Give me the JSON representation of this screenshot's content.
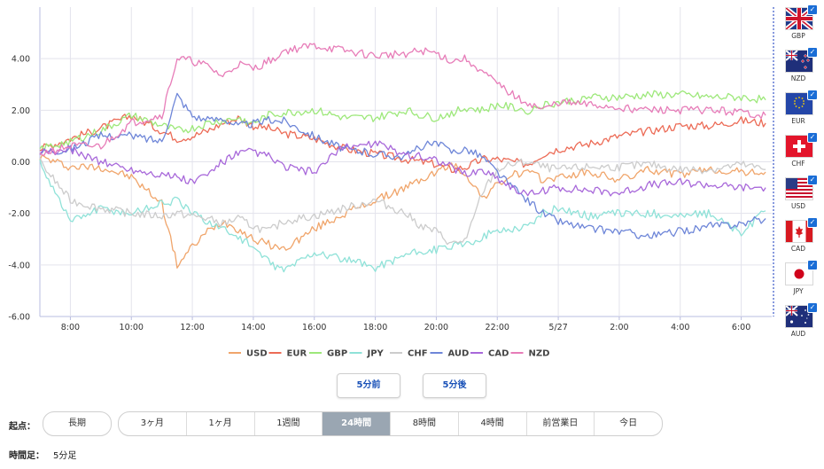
{
  "chart_data": {
    "type": "line",
    "title": "",
    "xlabel": "",
    "ylabel": "",
    "ylim": [
      -6,
      6
    ],
    "xlim": [
      -1,
      23
    ],
    "y_ticks": [
      4,
      2,
      0,
      -2,
      -4,
      -6
    ],
    "y_tick_labels": [
      "4.00",
      "2.00",
      "0.00",
      "-2.00",
      "-4.00",
      "-6.00"
    ],
    "x_ticks": [
      0,
      2,
      4,
      6,
      8,
      10,
      12,
      14,
      16,
      18,
      20,
      22
    ],
    "x_tick_labels": [
      "8:00",
      "10:00",
      "12:00",
      "14:00",
      "16:00",
      "18:00",
      "20:00",
      "22:00",
      "5/27",
      "2:00",
      "4:00",
      "6:00"
    ],
    "grid": true,
    "legend_position": "bottom",
    "series": [
      {
        "name": "USD",
        "color": "#f0a56b",
        "x": [
          -1,
          0,
          1,
          2,
          3,
          3.5,
          4,
          4.5,
          5,
          5.5,
          6,
          6.5,
          7,
          8,
          9,
          10,
          11,
          11.5,
          12,
          12.5,
          13,
          13.5,
          14,
          14.5,
          15,
          15.5,
          16,
          17,
          18,
          19,
          20,
          21,
          22,
          22.8
        ],
        "values": [
          0.2,
          -0.2,
          -0.2,
          -0.6,
          -1.6,
          -4.0,
          -3.3,
          -2.7,
          -2.3,
          -2.6,
          -3.0,
          -3.2,
          -3.4,
          -2.6,
          -2.0,
          -1.5,
          -1.0,
          -0.7,
          -0.4,
          -0.1,
          -0.5,
          -1.4,
          -0.9,
          -0.5,
          -0.4,
          -0.7,
          -0.6,
          -0.4,
          -0.7,
          -0.3,
          -0.5,
          -0.3,
          -0.4,
          -0.4
        ]
      },
      {
        "name": "EUR",
        "color": "#ec6b56",
        "x": [
          -1,
          0,
          1,
          2,
          3,
          3.5,
          4,
          4.5,
          5,
          5.5,
          6,
          6.5,
          7,
          8,
          9,
          10,
          11,
          11.5,
          12,
          12.5,
          13,
          13.5,
          14,
          14.5,
          15,
          15.5,
          16,
          17,
          18,
          19,
          20,
          21,
          22,
          22.8
        ],
        "values": [
          0.5,
          0.9,
          1.3,
          1.8,
          1.2,
          0.9,
          1.0,
          1.2,
          1.5,
          1.7,
          1.4,
          1.3,
          1.1,
          0.9,
          0.5,
          0.3,
          0.1,
          0.0,
          -0.1,
          -0.3,
          -0.2,
          0.1,
          0.1,
          0.0,
          -0.1,
          0.3,
          0.5,
          0.7,
          1.0,
          1.2,
          1.4,
          1.4,
          1.6,
          1.5
        ]
      },
      {
        "name": "GBP",
        "color": "#9de87a",
        "x": [
          -1,
          0,
          1,
          2,
          3,
          3.5,
          4,
          4.5,
          5,
          5.5,
          6,
          6.5,
          7,
          8,
          9,
          10,
          11,
          11.5,
          12,
          12.5,
          13,
          13.5,
          14,
          14.5,
          15,
          15.5,
          16,
          17,
          18,
          19,
          20,
          21,
          22,
          22.8
        ],
        "values": [
          0.5,
          0.8,
          1.2,
          1.8,
          1.4,
          1.2,
          1.3,
          1.5,
          1.6,
          1.7,
          1.5,
          1.8,
          1.9,
          2.0,
          1.7,
          1.7,
          2.0,
          1.8,
          1.7,
          1.9,
          2.1,
          2.0,
          2.2,
          2.1,
          2.0,
          2.2,
          2.3,
          2.5,
          2.5,
          2.6,
          2.6,
          2.5,
          2.5,
          2.4
        ]
      },
      {
        "name": "JPY",
        "color": "#8fe2d8",
        "x": [
          -1,
          0,
          1,
          2,
          3,
          3.5,
          4,
          4.5,
          5,
          5.5,
          6,
          6.5,
          7,
          8,
          9,
          10,
          11,
          11.5,
          12,
          12.5,
          13,
          13.5,
          14,
          14.5,
          15,
          15.5,
          16,
          17,
          18,
          19,
          20,
          21,
          22,
          22.8
        ],
        "values": [
          0.0,
          -2.3,
          -1.8,
          -2.0,
          -1.6,
          -1.5,
          -2.0,
          -2.3,
          -2.6,
          -2.9,
          -3.3,
          -3.9,
          -4.2,
          -3.5,
          -3.8,
          -4.1,
          -3.6,
          -3.5,
          -3.4,
          -3.3,
          -3.2,
          -2.9,
          -2.7,
          -2.6,
          -2.5,
          -2.0,
          -1.8,
          -2.1,
          -2.0,
          -2.0,
          -2.1,
          -2.0,
          -2.8,
          -1.9
        ]
      },
      {
        "name": "CHF",
        "color": "#cccccc",
        "x": [
          -1,
          0,
          1,
          2,
          3,
          3.5,
          4,
          4.5,
          5,
          5.5,
          6,
          6.5,
          7,
          8,
          9,
          10,
          11,
          11.5,
          12,
          12.5,
          13,
          13.5,
          14,
          14.5,
          15,
          15.5,
          16,
          17,
          18,
          19,
          20,
          21,
          22,
          22.8
        ],
        "values": [
          0.0,
          -1.5,
          -1.8,
          -2.0,
          -2.1,
          -2.0,
          -2.1,
          -2.2,
          -2.4,
          -2.2,
          -2.5,
          -2.7,
          -2.3,
          -2.1,
          -1.8,
          -1.5,
          -2.0,
          -2.5,
          -2.7,
          -3.2,
          -3.0,
          -1.2,
          -0.3,
          -0.1,
          0.0,
          -0.2,
          -0.3,
          -0.2,
          -0.2,
          -0.1,
          -0.3,
          -0.3,
          -0.1,
          -0.3
        ]
      },
      {
        "name": "AUD",
        "color": "#6e86d8",
        "x": [
          -1,
          0,
          1,
          2,
          3,
          3.5,
          4,
          4.5,
          5,
          5.5,
          6,
          6.5,
          7,
          8,
          9,
          10,
          11,
          11.5,
          12,
          12.5,
          13,
          13.5,
          14,
          14.5,
          15,
          15.5,
          16,
          17,
          18,
          19,
          20,
          21,
          22,
          22.8
        ],
        "values": [
          0.4,
          0.5,
          1.0,
          1.0,
          0.8,
          2.6,
          1.8,
          1.6,
          1.7,
          1.4,
          1.5,
          1.6,
          1.6,
          1.0,
          0.5,
          0.3,
          0.2,
          0.6,
          0.7,
          0.4,
          0.5,
          0.2,
          -0.4,
          -1.0,
          -1.5,
          -2.0,
          -2.3,
          -2.6,
          -2.7,
          -2.9,
          -2.7,
          -2.5,
          -2.4,
          -2.2
        ]
      },
      {
        "name": "CAD",
        "color": "#a868da",
        "x": [
          -1,
          0,
          1,
          2,
          3,
          3.5,
          4,
          4.5,
          5,
          5.5,
          6,
          6.5,
          7,
          8,
          9,
          10,
          11,
          11.5,
          12,
          12.5,
          13,
          13.5,
          14,
          14.5,
          15,
          15.5,
          16,
          17,
          18,
          19,
          20,
          21,
          22,
          22.8
        ],
        "values": [
          0.3,
          0.5,
          0.0,
          -0.3,
          -0.5,
          -0.6,
          -0.8,
          -0.5,
          0.0,
          0.3,
          0.4,
          0.2,
          -0.2,
          -0.4,
          0.6,
          0.7,
          0.3,
          0.2,
          0.1,
          -0.2,
          -0.5,
          -0.3,
          -0.6,
          -1.0,
          -1.3,
          -1.1,
          -1.0,
          -1.1,
          -1.2,
          -0.9,
          -0.8,
          -0.9,
          -1.0,
          -1.0
        ]
      },
      {
        "name": "NZD",
        "color": "#e77cb8",
        "x": [
          -1,
          0,
          1,
          2,
          3,
          3.5,
          4,
          4.5,
          5,
          5.5,
          6,
          6.5,
          7,
          8,
          9,
          10,
          11,
          11.5,
          12,
          12.5,
          13,
          13.5,
          14,
          14.5,
          15,
          15.5,
          16,
          17,
          18,
          19,
          20,
          21,
          22,
          22.8
        ],
        "values": [
          0.3,
          0.6,
          0.6,
          1.5,
          1.8,
          4.0,
          3.9,
          3.7,
          3.3,
          3.8,
          3.6,
          3.9,
          4.3,
          4.5,
          4.3,
          4.1,
          4.2,
          4.3,
          4.2,
          3.9,
          4.0,
          3.5,
          3.0,
          2.6,
          2.3,
          2.0,
          2.3,
          2.2,
          2.1,
          2.0,
          2.0,
          2.0,
          1.9,
          1.8
        ]
      }
    ]
  },
  "currency_panel": [
    {
      "code": "GBP",
      "flag": "uk-flag"
    },
    {
      "code": "NZD",
      "flag": "nz-flag"
    },
    {
      "code": "EUR",
      "flag": "eu-flag"
    },
    {
      "code": "CHF",
      "flag": "ch-flag"
    },
    {
      "code": "USD",
      "flag": "us-flag"
    },
    {
      "code": "CAD",
      "flag": "ca-flag"
    },
    {
      "code": "JPY",
      "flag": "jp-flag"
    },
    {
      "code": "AUD",
      "flag": "au-flag"
    }
  ],
  "controls": {
    "prev_label": "5分前",
    "next_label": "5分後",
    "origin_label": "起点：",
    "long_label": "長期",
    "ranges": [
      "3ヶ月",
      "1ヶ月",
      "1週間",
      "24時間",
      "8時間",
      "4時間",
      "前営業日",
      "今日"
    ],
    "active_range": "24時間",
    "timeframe_label": "時間足：",
    "timeframe_value": "5分足"
  },
  "colors": {
    "grid": "#e3e3ec",
    "axis": "#b9bde0",
    "active_bg": "#9aa6b2",
    "check": "#1a6dd6"
  }
}
